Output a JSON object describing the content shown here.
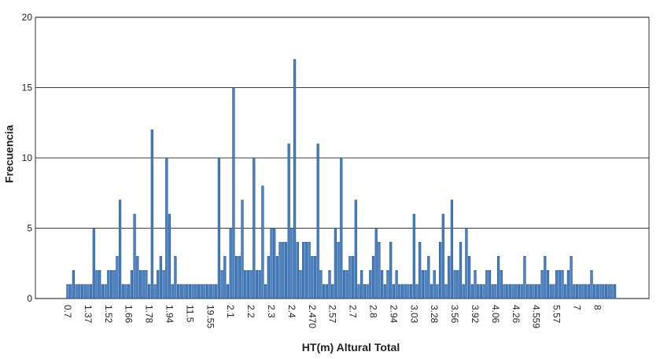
{
  "chart_data": {
    "type": "bar",
    "x_label": "HT(m) Altural Total",
    "y_label": "Frecuencia",
    "color": "#4a86c8",
    "categories": [
      "0.7",
      null,
      null,
      null,
      null,
      null,
      null,
      "1.37",
      null,
      null,
      null,
      null,
      null,
      null,
      "1.52",
      null,
      null,
      null,
      null,
      null,
      null,
      "1.66",
      null,
      null,
      null,
      null,
      null,
      null,
      "1.78",
      null,
      null,
      null,
      null,
      null,
      null,
      "1.94",
      null,
      null,
      null,
      null,
      null,
      null,
      "11.5",
      null,
      null,
      null,
      null,
      null,
      null,
      "19.55",
      null,
      null,
      null,
      null,
      null,
      null,
      "2.1",
      null,
      null,
      null,
      null,
      null,
      null,
      "2.2",
      null,
      null,
      null,
      null,
      null,
      null,
      "2.3",
      null,
      null,
      null,
      null,
      null,
      null,
      "2.4",
      null,
      null,
      null,
      null,
      null,
      null,
      "2.470",
      null,
      null,
      null,
      null,
      null,
      null,
      "2.57",
      null,
      null,
      null,
      null,
      null,
      null,
      "2.7",
      null,
      null,
      null,
      null,
      null,
      null,
      "2.8",
      null,
      null,
      null,
      null,
      null,
      null,
      "2.94",
      null,
      null,
      null,
      null,
      null,
      null,
      "3.03",
      null,
      null,
      null,
      null,
      null,
      null,
      "3.28",
      null,
      null,
      null,
      null,
      null,
      null,
      "3.56",
      null,
      null,
      null,
      null,
      null,
      null,
      "3.92",
      null,
      null,
      null,
      null,
      null,
      null,
      "4.06",
      null,
      null,
      null,
      null,
      null,
      null,
      "4.26",
      null,
      null,
      null,
      null,
      null,
      null,
      "4.559",
      null,
      null,
      null,
      null,
      null,
      null,
      "5.57",
      null,
      null,
      null,
      null,
      null,
      null,
      "7",
      null,
      null,
      null,
      null,
      null,
      null,
      "8",
      null,
      null,
      null,
      null,
      null,
      null
    ],
    "values": [
      1,
      1,
      2,
      1,
      1,
      1,
      1,
      1,
      1,
      5,
      2,
      2,
      1,
      1,
      2,
      2,
      2,
      3,
      7,
      1,
      1,
      1,
      2,
      6,
      3,
      2,
      2,
      2,
      1,
      12,
      1,
      2,
      3,
      2,
      10,
      6,
      1,
      3,
      1,
      1,
      1,
      1,
      1,
      1,
      1,
      1,
      1,
      1,
      1,
      1,
      1,
      1,
      10,
      2,
      3,
      1,
      5,
      15,
      3,
      3,
      7,
      2,
      2,
      2,
      10,
      2,
      2,
      8,
      1,
      3,
      5,
      5,
      3,
      4,
      4,
      4,
      11,
      5,
      17,
      4,
      2,
      4,
      4,
      4,
      3,
      3,
      11,
      2,
      1,
      1,
      2,
      1,
      5,
      4,
      10,
      2,
      2,
      3,
      3,
      7,
      1,
      2,
      1,
      1,
      2,
      3,
      5,
      4,
      2,
      1,
      2,
      4,
      1,
      2,
      1,
      1,
      1,
      1,
      1,
      6,
      1,
      4,
      2,
      2,
      3,
      1,
      2,
      1,
      4,
      6,
      1,
      3,
      7,
      2,
      2,
      4,
      1,
      5,
      3,
      1,
      2,
      1,
      1,
      1,
      2,
      2,
      1,
      1,
      3,
      2,
      1,
      1,
      1,
      1,
      1,
      1,
      1,
      3,
      1,
      1,
      1,
      1,
      1,
      2,
      3,
      2,
      1,
      1,
      2,
      2,
      2,
      1,
      2,
      3,
      1,
      1,
      1,
      1,
      1,
      1,
      2,
      1,
      1,
      1,
      1,
      1,
      1,
      1,
      1
    ],
    "ylim": [
      0,
      20
    ],
    "yticks": [
      0,
      5,
      10,
      15,
      20
    ],
    "grid": true
  }
}
